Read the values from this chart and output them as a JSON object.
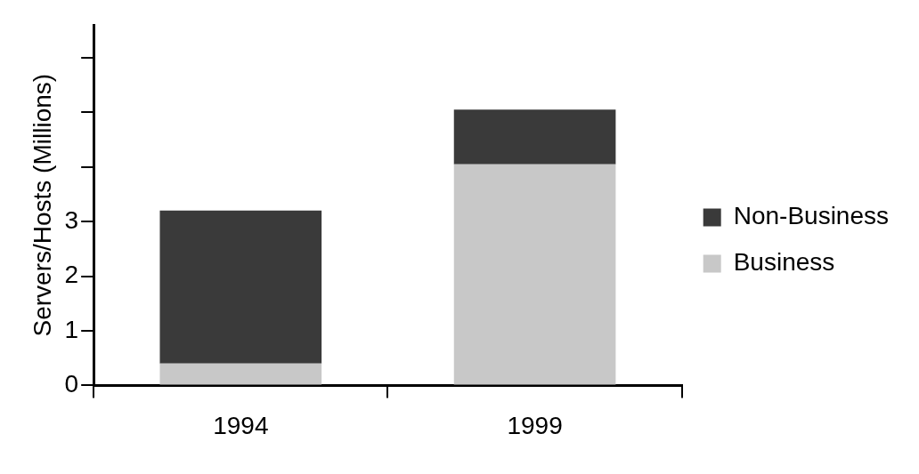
{
  "chart_data": {
    "type": "bar",
    "stacked": true,
    "ylabel": "Servers/Hosts (Millions)",
    "categories": [
      "1994",
      "1999"
    ],
    "series": [
      {
        "name": "Business",
        "color": "#c8c8c8",
        "values": [
          0.4,
          4.05
        ]
      },
      {
        "name": "Non-Business",
        "color": "#3a3a3a",
        "values": [
          2.8,
          1.0
        ]
      }
    ],
    "ylim": [
      0,
      6.6
    ],
    "yticks": [
      0,
      1,
      2,
      3,
      {
        "value": 4,
        "label": null
      },
      {
        "value": 5,
        "label": null
      },
      {
        "value": 6,
        "label": null
      }
    ],
    "legend": "right",
    "grid": false
  }
}
